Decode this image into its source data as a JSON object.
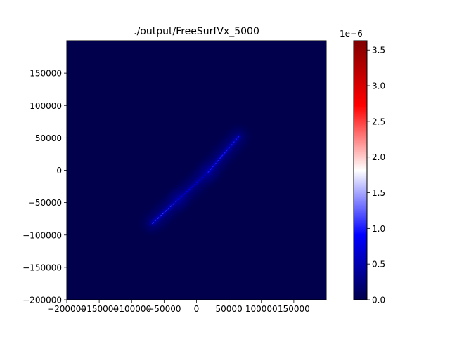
{
  "chart_data": {
    "type": "heatmap",
    "title": "./output/FreeSurfVx_5000",
    "xlabel": "",
    "ylabel": "",
    "xlim": [
      -200000,
      200000
    ],
    "ylim": [
      -200000,
      200000
    ],
    "x_ticks": [
      -200000,
      -150000,
      -100000,
      -50000,
      0,
      50000,
      100000,
      150000
    ],
    "x_tick_labels": [
      "−200000",
      "−150000",
      "−100000",
      "−50000",
      "0",
      "50000",
      "100000",
      "150000"
    ],
    "y_ticks": [
      -200000,
      -150000,
      -100000,
      -50000,
      0,
      50000,
      100000,
      150000
    ],
    "y_tick_labels": [
      "−200000",
      "−150000",
      "−100000",
      "−50000",
      "0",
      "50000",
      "100000",
      "150000"
    ],
    "colormap": "seismic",
    "colormap_stops": [
      "#00004c",
      "#0000ff",
      "#ffffff",
      "#ff0000",
      "#800000"
    ],
    "background_value": 0.0,
    "colorbar": {
      "min": 0.0,
      "max": 3.63,
      "ticks": [
        0.0,
        0.5,
        1.0,
        1.5,
        2.0,
        2.5,
        3.0,
        3.5
      ],
      "tick_labels": [
        "0.0",
        "0.5",
        "1.0",
        "1.5",
        "2.0",
        "2.5",
        "3.0",
        "3.5"
      ],
      "offset_text": "1e−6"
    },
    "features": [
      {
        "from": [
          -68000,
          -82000
        ],
        "to": [
          -28000,
          -45000
        ],
        "value": 1.1
      },
      {
        "from": [
          -28000,
          -45000
        ],
        "to": [
          18000,
          -3000
        ],
        "value": 0.8
      },
      {
        "from": [
          18000,
          -3000
        ],
        "to": [
          65000,
          52000
        ],
        "value": 1.0
      }
    ]
  }
}
